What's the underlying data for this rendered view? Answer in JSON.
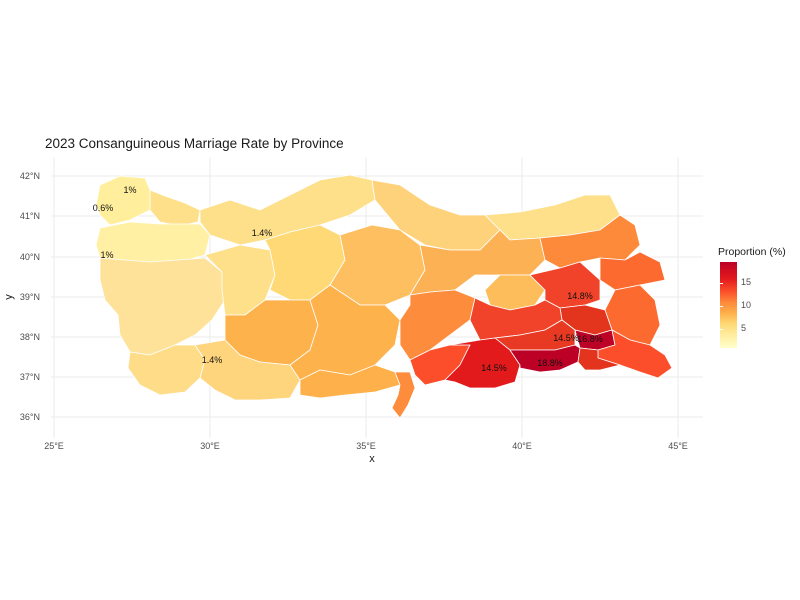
{
  "title": "2023 Consanguineous Marriage Rate by Province",
  "x_axis_title": "x",
  "y_axis_title": "y",
  "x_ticks": [
    "25°E",
    "30°E",
    "35°E",
    "40°E",
    "45°E"
  ],
  "y_ticks": [
    "42°N",
    "41°N",
    "40°N",
    "39°N",
    "38°N",
    "37°N",
    "36°N"
  ],
  "legend": {
    "title": "Proportion (%)",
    "ticks": [
      "15",
      "10",
      "5"
    ]
  },
  "province_labels": [
    "1%",
    "0.6%",
    "1%",
    "1.4%",
    "1.4%",
    "14.8%",
    "16.8%",
    "14.5%",
    "18.8%",
    "14.5%"
  ],
  "colors": {
    "low": "#ffffcc",
    "mid": "#fd8d3c",
    "high": "#bd0026",
    "border": "#ffffff"
  }
}
